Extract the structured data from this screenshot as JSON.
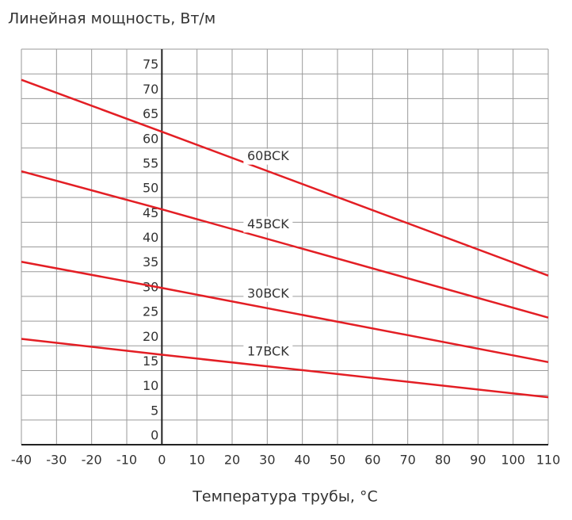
{
  "chart_data": {
    "type": "line",
    "title": "Линейная мощность, Вт/м",
    "x_label": "Температура трубы, °C",
    "x": [
      -40,
      0,
      110
    ],
    "series": [
      {
        "name": "60BCK",
        "color": "#e31e24",
        "values": [
          73.8,
          63.3,
          34.2
        ]
      },
      {
        "name": "45BCK",
        "color": "#e31e24",
        "values": [
          55.3,
          47.6,
          25.7
        ]
      },
      {
        "name": "30BCK",
        "color": "#e31e24",
        "values": [
          37,
          31.7,
          16.7
        ]
      },
      {
        "name": "17BCK",
        "color": "#e31e24",
        "values": [
          21.4,
          18.2,
          9.6
        ]
      }
    ],
    "xlim": [
      -40,
      110
    ],
    "xticks": [
      -40,
      -30,
      -20,
      -10,
      0,
      10,
      20,
      30,
      40,
      50,
      60,
      70,
      80,
      90,
      100,
      110
    ],
    "ylim": [
      0,
      80
    ],
    "yticks": [
      0,
      5,
      10,
      15,
      20,
      25,
      30,
      35,
      40,
      45,
      50,
      55,
      60,
      65,
      70,
      75
    ],
    "grid": true
  }
}
